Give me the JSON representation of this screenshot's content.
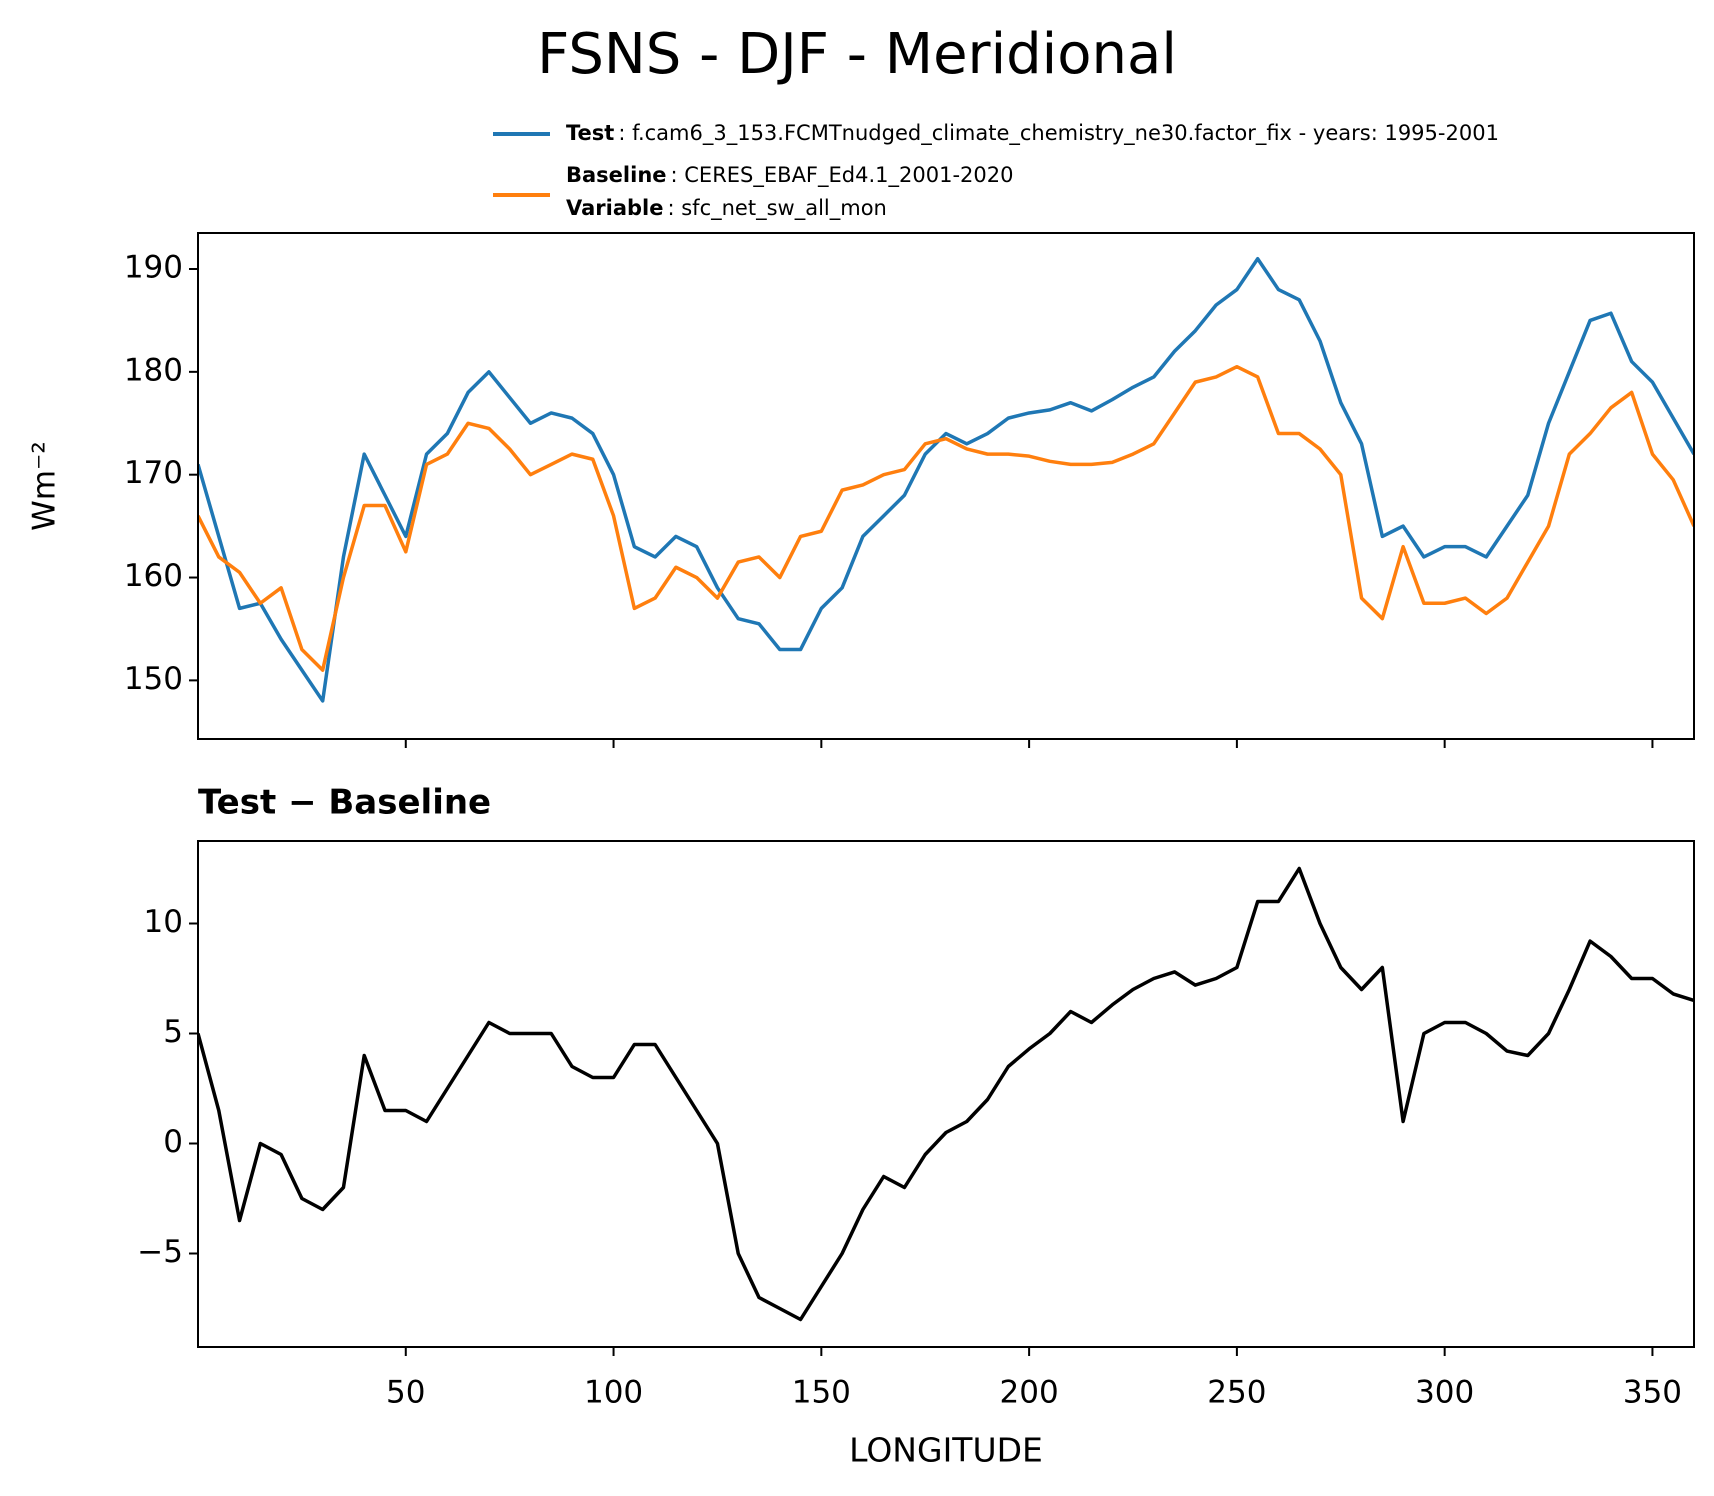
{
  "chart_data": [
    {
      "type": "line",
      "title": "FSNS - DJF - Meridional",
      "ylabel": "Wm⁻²",
      "legend": {
        "variable_label": "Variable",
        "variable_detail": ": sfc_net_sw_all_mon"
      },
      "x": [
        0,
        5,
        10,
        15,
        20,
        25,
        30,
        35,
        40,
        45,
        50,
        55,
        60,
        65,
        70,
        75,
        80,
        85,
        90,
        95,
        100,
        105,
        110,
        115,
        120,
        125,
        130,
        135,
        140,
        145,
        150,
        155,
        160,
        165,
        170,
        175,
        180,
        185,
        190,
        195,
        200,
        205,
        210,
        215,
        220,
        225,
        230,
        235,
        240,
        245,
        250,
        255,
        260,
        265,
        270,
        275,
        280,
        285,
        290,
        295,
        300,
        305,
        310,
        315,
        320,
        325,
        330,
        335,
        340,
        345,
        350,
        355,
        360
      ],
      "xlim": [
        0,
        360
      ],
      "xticks": [
        50,
        100,
        150,
        200,
        250,
        300,
        350
      ],
      "ylim": [
        144.3,
        193.5
      ],
      "yticks": [
        150,
        160,
        170,
        180,
        190
      ],
      "series": [
        {
          "name": "Test",
          "detail": ": f.cam6_3_153.FCMTnudged_climate_chemistry_ne30.factor_fix - years: 1995-2001",
          "color": "#1f77b4",
          "values": [
            171,
            164,
            157,
            157.5,
            154,
            151,
            148,
            162,
            172,
            168,
            164,
            172,
            174,
            178,
            180,
            177.5,
            175,
            176,
            175.5,
            174,
            170,
            163,
            162,
            164,
            163,
            159,
            156,
            155.5,
            153,
            153,
            157,
            159,
            164,
            166,
            168,
            172,
            174,
            173,
            174,
            175.5,
            176,
            176.3,
            177,
            176.2,
            177.3,
            178.5,
            179.5,
            182,
            184,
            186.5,
            188,
            191,
            188,
            187,
            183,
            177,
            173,
            164,
            165,
            162,
            163,
            163,
            162,
            165,
            168,
            175,
            180,
            185,
            185.7,
            181,
            179,
            175.5,
            172
          ]
        },
        {
          "name": "Baseline",
          "detail": ": CERES_EBAF_Ed4.1_2001-2020",
          "color": "#ff7f0e",
          "values": [
            166,
            162,
            160.5,
            157.5,
            159,
            153,
            151,
            160,
            167,
            167,
            162.5,
            171,
            172,
            175,
            174.5,
            172.5,
            170,
            171,
            172,
            171.5,
            166,
            157,
            158,
            161,
            160,
            158,
            161.5,
            162,
            160,
            164,
            164.5,
            168.5,
            169,
            170,
            170.5,
            173,
            173.5,
            172.5,
            172,
            172,
            171.8,
            171.3,
            171,
            171,
            171.2,
            172,
            173,
            176,
            179,
            179.5,
            180.5,
            179.5,
            174,
            174,
            172.5,
            170,
            158,
            156,
            163,
            157.5,
            157.5,
            158,
            156.5,
            158,
            161.5,
            165,
            172,
            174,
            176.5,
            178,
            172,
            169.5,
            165
          ]
        }
      ]
    },
    {
      "type": "line",
      "title": "Test − Baseline",
      "xlabel": "LONGITUDE",
      "x": [
        0,
        5,
        10,
        15,
        20,
        25,
        30,
        35,
        40,
        45,
        50,
        55,
        60,
        65,
        70,
        75,
        80,
        85,
        90,
        95,
        100,
        105,
        110,
        115,
        120,
        125,
        130,
        135,
        140,
        145,
        150,
        155,
        160,
        165,
        170,
        175,
        180,
        185,
        190,
        195,
        200,
        205,
        210,
        215,
        220,
        225,
        230,
        235,
        240,
        245,
        250,
        255,
        260,
        265,
        270,
        275,
        280,
        285,
        290,
        295,
        300,
        305,
        310,
        315,
        320,
        325,
        330,
        335,
        340,
        345,
        350,
        355,
        360
      ],
      "xlim": [
        0,
        360
      ],
      "xticks": [
        50,
        100,
        150,
        200,
        250,
        300,
        350
      ],
      "ylim": [
        -9.25,
        13.75
      ],
      "yticks": [
        {
          "value": -5,
          "label": "−5"
        },
        0,
        5,
        10
      ],
      "series": [
        {
          "color": "#000000",
          "values": [
            5,
            1.5,
            -3.5,
            0,
            -0.5,
            -2.5,
            -3,
            -2,
            4,
            1.5,
            1.5,
            1,
            2.5,
            4,
            5.5,
            5,
            5,
            5,
            3.5,
            3,
            3,
            4.5,
            4.5,
            3,
            1.5,
            0,
            -5,
            -7,
            -7.5,
            -8,
            -6.5,
            -5,
            -3,
            -1.5,
            -2,
            -0.5,
            0.5,
            1,
            2,
            3.5,
            4.3,
            5,
            6,
            5.5,
            6.3,
            7,
            7.5,
            7.8,
            7.2,
            7.5,
            8,
            11,
            11,
            12.5,
            10,
            8,
            7,
            8,
            1,
            5,
            5.5,
            5.5,
            5,
            4.2,
            4,
            5,
            7,
            9.2,
            8.5,
            7.5,
            7.5,
            6.8,
            6.5
          ]
        }
      ]
    }
  ]
}
